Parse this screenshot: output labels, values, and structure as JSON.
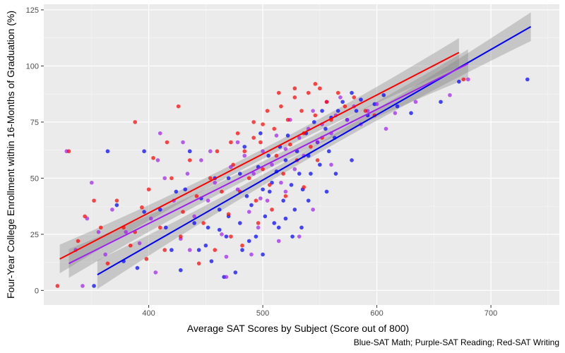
{
  "chart_data": {
    "type": "scatter",
    "xlabel": "Average SAT Scores by Subject (Score out of 800)",
    "ylabel": "Four-Year College Enrollment within 16-Months of Graduation (%)",
    "caption": "Blue-SAT Math; Purple-SAT Reading; Red-SAT Writing",
    "xlim": [
      308,
      760
    ],
    "ylim": [
      -6.5,
      127.5
    ],
    "x_ticks": [
      400,
      500,
      600,
      700
    ],
    "y_ticks": [
      0,
      25,
      50,
      75,
      100,
      125
    ],
    "grid": true,
    "panel_color": "#ebebeb",
    "series": [
      {
        "name": "SAT Math",
        "color": "#0000ff",
        "fit_line": {
          "x": [
            355,
            735
          ],
          "y": [
            7,
            117.5
          ]
        },
        "points": [
          [
            352,
            2
          ],
          [
            378,
            13
          ],
          [
            390,
            10
          ],
          [
            396,
            35
          ],
          [
            415,
            28
          ],
          [
            420,
            18
          ],
          [
            428,
            9
          ],
          [
            432,
            45
          ],
          [
            440,
            30
          ],
          [
            446,
            41
          ],
          [
            450,
            20
          ],
          [
            455,
            13
          ],
          [
            458,
            50
          ],
          [
            462,
            27
          ],
          [
            466,
            6
          ],
          [
            470,
            33
          ],
          [
            476,
            8
          ],
          [
            480,
            30
          ],
          [
            482,
            18
          ],
          [
            486,
            42
          ],
          [
            490,
            38
          ],
          [
            494,
            24
          ],
          [
            496,
            55
          ],
          [
            500,
            45
          ],
          [
            502,
            33
          ],
          [
            505,
            60
          ],
          [
            508,
            48
          ],
          [
            510,
            30
          ],
          [
            512,
            53
          ],
          [
            515,
            64
          ],
          [
            518,
            40
          ],
          [
            520,
            58
          ],
          [
            522,
            69
          ],
          [
            525,
            47
          ],
          [
            528,
            36
          ],
          [
            530,
            62
          ],
          [
            532,
            52
          ],
          [
            535,
            45
          ],
          [
            538,
            70
          ],
          [
            540,
            60
          ],
          [
            542,
            52
          ],
          [
            545,
            75
          ],
          [
            548,
            66
          ],
          [
            550,
            56
          ],
          [
            552,
            80
          ],
          [
            555,
            72
          ],
          [
            558,
            62
          ],
          [
            560,
            77
          ],
          [
            563,
            68
          ],
          [
            566,
            80
          ],
          [
            570,
            84
          ],
          [
            574,
            76
          ],
          [
            578,
            88
          ],
          [
            582,
            80
          ],
          [
            586,
            85
          ],
          [
            592,
            78
          ],
          [
            598,
            83
          ],
          [
            606,
            87
          ],
          [
            618,
            82
          ],
          [
            630,
            79
          ],
          [
            656,
            84
          ],
          [
            672,
            93
          ],
          [
            732,
            94
          ],
          [
            488,
            22
          ],
          [
            500,
            16
          ],
          [
            514,
            28
          ],
          [
            526,
            24
          ],
          [
            540,
            40
          ],
          [
            480,
            52
          ],
          [
            506,
            44
          ],
          [
            470,
            50
          ],
          [
            462,
            36
          ],
          [
            452,
            28
          ],
          [
            444,
            18
          ],
          [
            436,
            62
          ],
          [
            424,
            44
          ],
          [
            410,
            36
          ],
          [
            364,
            62
          ],
          [
            372,
            38
          ],
          [
            396,
            62
          ],
          [
            468,
            24
          ],
          [
            484,
            64
          ],
          [
            498,
            70
          ],
          [
            520,
            32
          ],
          [
            534,
            28
          ],
          [
            556,
            44
          ],
          [
            564,
            52
          ],
          [
            578,
            58
          ]
        ]
      },
      {
        "name": "SAT Reading",
        "color": "#a020f0",
        "fit_line": {
          "x": [
            330,
            680
          ],
          "y": [
            12,
            101
          ]
        },
        "points": [
          [
            328,
            62
          ],
          [
            336,
            18
          ],
          [
            342,
            2
          ],
          [
            346,
            32
          ],
          [
            350,
            48
          ],
          [
            356,
            26
          ],
          [
            362,
            16
          ],
          [
            368,
            36
          ],
          [
            380,
            26
          ],
          [
            392,
            21
          ],
          [
            402,
            32
          ],
          [
            408,
            58
          ],
          [
            414,
            50
          ],
          [
            422,
            40
          ],
          [
            428,
            23
          ],
          [
            434,
            52
          ],
          [
            440,
            33
          ],
          [
            446,
            58
          ],
          [
            452,
            40
          ],
          [
            458,
            48
          ],
          [
            464,
            25
          ],
          [
            468,
            6
          ],
          [
            472,
            55
          ],
          [
            478,
            45
          ],
          [
            484,
            60
          ],
          [
            488,
            35
          ],
          [
            492,
            52
          ],
          [
            496,
            28
          ],
          [
            500,
            62
          ],
          [
            504,
            40
          ],
          [
            508,
            56
          ],
          [
            512,
            69
          ],
          [
            516,
            48
          ],
          [
            520,
            63
          ],
          [
            524,
            76
          ],
          [
            528,
            54
          ],
          [
            532,
            68
          ],
          [
            536,
            60
          ],
          [
            540,
            72
          ],
          [
            544,
            80
          ],
          [
            548,
            66
          ],
          [
            552,
            74
          ],
          [
            556,
            84
          ],
          [
            560,
            70
          ],
          [
            564,
            78
          ],
          [
            568,
            86
          ],
          [
            574,
            76
          ],
          [
            580,
            82
          ],
          [
            586,
            74
          ],
          [
            592,
            80
          ],
          [
            600,
            83
          ],
          [
            608,
            72
          ],
          [
            616,
            79
          ],
          [
            634,
            84
          ],
          [
            664,
            87
          ],
          [
            680,
            94
          ],
          [
            406,
            8
          ],
          [
            436,
            18
          ],
          [
            468,
            15
          ],
          [
            490,
            16
          ],
          [
            514,
            22
          ],
          [
            532,
            24
          ],
          [
            544,
            36
          ],
          [
            560,
            56
          ],
          [
            520,
            44
          ],
          [
            498,
            41
          ],
          [
            478,
            66
          ],
          [
            454,
            62
          ],
          [
            430,
            66
          ],
          [
            410,
            70
          ]
        ]
      },
      {
        "name": "SAT Writing",
        "color": "#ff0000",
        "fit_line": {
          "x": [
            322,
            672
          ],
          "y": [
            14,
            106
          ]
        },
        "points": [
          [
            320,
            2
          ],
          [
            330,
            62
          ],
          [
            338,
            22
          ],
          [
            344,
            33
          ],
          [
            352,
            40
          ],
          [
            358,
            28
          ],
          [
            364,
            12
          ],
          [
            372,
            40
          ],
          [
            378,
            28
          ],
          [
            384,
            20
          ],
          [
            388,
            75
          ],
          [
            394,
            37
          ],
          [
            400,
            45
          ],
          [
            404,
            59
          ],
          [
            410,
            28
          ],
          [
            416,
            66
          ],
          [
            420,
            50
          ],
          [
            426,
            82
          ],
          [
            430,
            35
          ],
          [
            436,
            58
          ],
          [
            442,
            42
          ],
          [
            448,
            30
          ],
          [
            454,
            50
          ],
          [
            460,
            62
          ],
          [
            464,
            44
          ],
          [
            470,
            34
          ],
          [
            474,
            56
          ],
          [
            478,
            70
          ],
          [
            480,
            44
          ],
          [
            484,
            62
          ],
          [
            488,
            50
          ],
          [
            492,
            75
          ],
          [
            494,
            40
          ],
          [
            498,
            66
          ],
          [
            500,
            54
          ],
          [
            504,
            80
          ],
          [
            506,
            47
          ],
          [
            510,
            72
          ],
          [
            512,
            60
          ],
          [
            516,
            82
          ],
          [
            518,
            52
          ],
          [
            522,
            76
          ],
          [
            524,
            65
          ],
          [
            528,
            86
          ],
          [
            530,
            58
          ],
          [
            534,
            80
          ],
          [
            536,
            70
          ],
          [
            540,
            88
          ],
          [
            542,
            64
          ],
          [
            546,
            78
          ],
          [
            550,
            90
          ],
          [
            552,
            68
          ],
          [
            556,
            84
          ],
          [
            560,
            76
          ],
          [
            566,
            88
          ],
          [
            572,
            82
          ],
          [
            580,
            86
          ],
          [
            590,
            80
          ],
          [
            598,
            78
          ],
          [
            676,
            94
          ],
          [
            388,
            26
          ],
          [
            398,
            14
          ],
          [
            414,
            18
          ],
          [
            428,
            24
          ],
          [
            444,
            12
          ],
          [
            458,
            18
          ],
          [
            472,
            24
          ],
          [
            482,
            20
          ],
          [
            496,
            30
          ],
          [
            508,
            36
          ],
          [
            520,
            42
          ],
          [
            536,
            46
          ],
          [
            548,
            58
          ],
          [
            472,
            66
          ],
          [
            492,
            68
          ],
          [
            500,
            74
          ],
          [
            514,
            88
          ],
          [
            528,
            90
          ],
          [
            546,
            92
          ]
        ]
      }
    ]
  }
}
